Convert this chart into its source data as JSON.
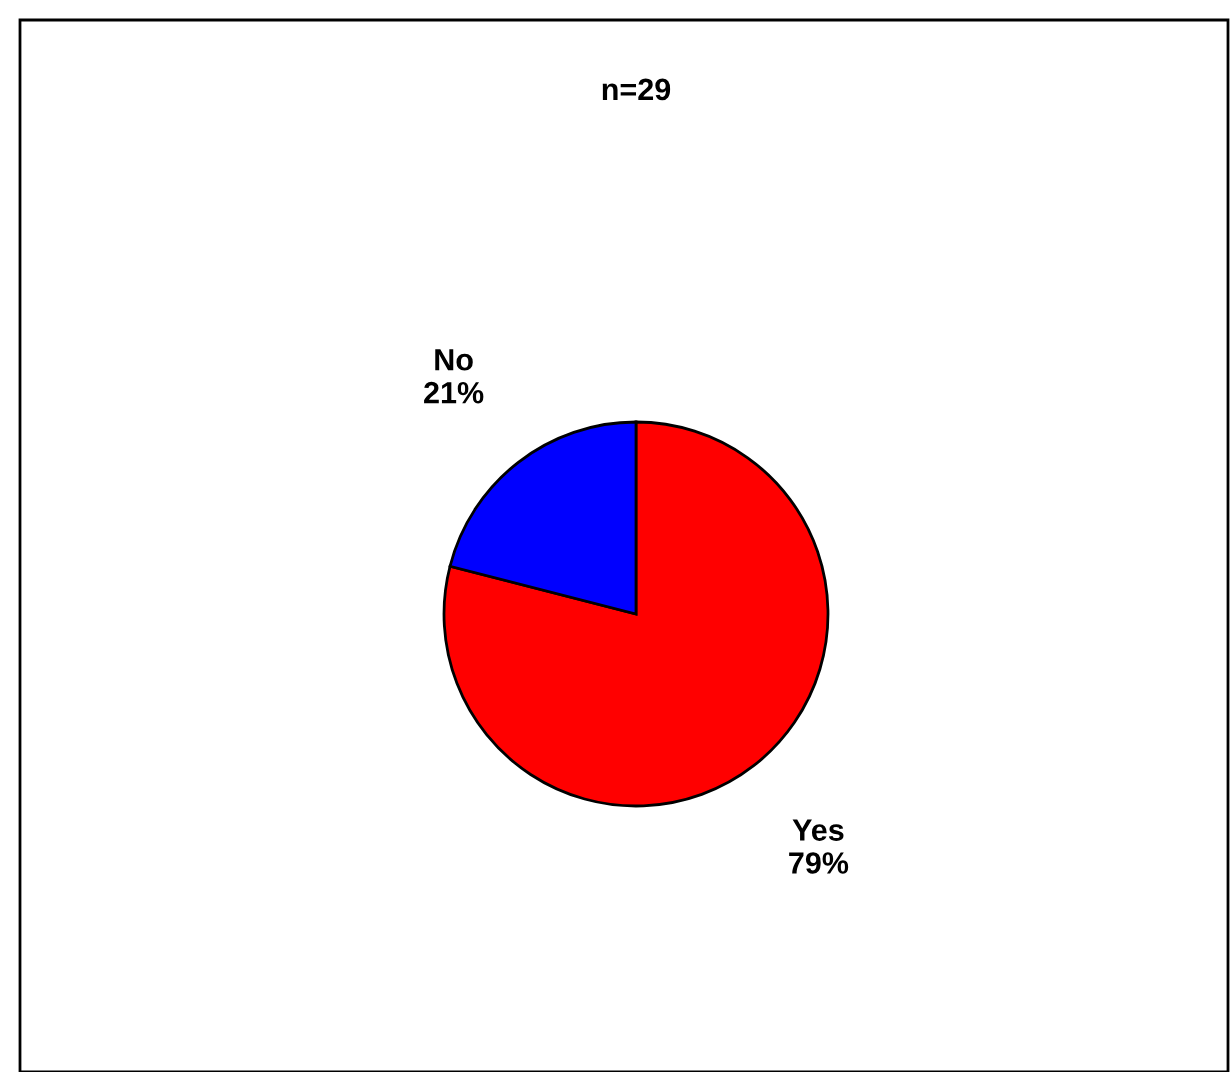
{
  "chart_data": {
    "type": "pie",
    "title": "n=29",
    "categories": [
      "Yes",
      "No"
    ],
    "values": [
      79,
      21
    ],
    "value_labels": [
      "79%",
      "21%"
    ],
    "colors": [
      "#ff0000",
      "#0000ff"
    ],
    "legend": false
  }
}
